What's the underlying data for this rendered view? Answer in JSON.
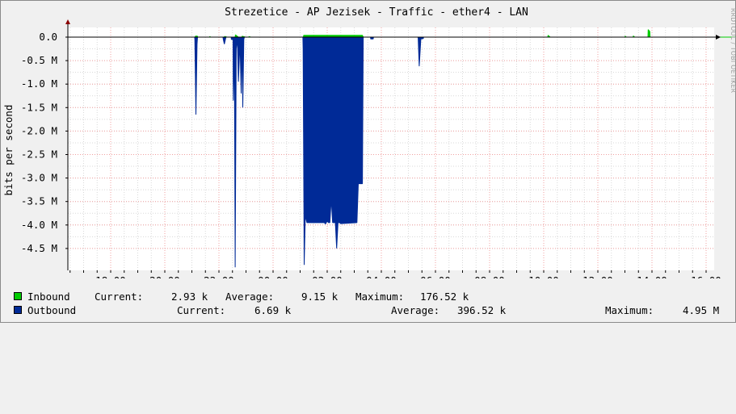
{
  "chart_data": {
    "type": "area",
    "title": "Strezetice - AP Jezisek - Traffic - ether4 - LAN",
    "ylabel": "bits per second",
    "xlabel": "",
    "ylim": [
      -4.85,
      0.2
    ],
    "y_unit": "M",
    "y_tick_labels": [
      "0.0",
      "-0.5 M",
      "-1.0 M",
      "-1.5 M",
      "-2.0 M",
      "-2.5 M",
      "-3.0 M",
      "-3.5 M",
      "-4.0 M",
      "-4.5 M"
    ],
    "x_tick_labels": [
      "18:00",
      "20:00",
      "22:00",
      "00:00",
      "02:00",
      "04:00",
      "06:00",
      "08:00",
      "10:00",
      "12:00",
      "14:00",
      "16:00"
    ],
    "x_unit": "hours since 18:00 (approx)",
    "grid": true,
    "series": [
      {
        "name": "Inbound",
        "color": "#00cc00",
        "points": [
          [
            3.12,
            0
          ],
          [
            3.13,
            0.02
          ],
          [
            3.2,
            0.02
          ],
          [
            3.22,
            0
          ],
          [
            3.65,
            0
          ],
          [
            3.66,
            0.012
          ],
          [
            3.7,
            0
          ],
          [
            4.2,
            0
          ],
          [
            4.21,
            0.015
          ],
          [
            4.3,
            0
          ],
          [
            4.6,
            0
          ],
          [
            4.61,
            0.05
          ],
          [
            4.72,
            0
          ],
          [
            4.85,
            0
          ],
          [
            4.86,
            0.02
          ],
          [
            4.98,
            0
          ],
          [
            5.1,
            0
          ],
          [
            5.11,
            0.01
          ],
          [
            5.18,
            0
          ],
          [
            7.12,
            0
          ],
          [
            7.13,
            0.04
          ],
          [
            9.3,
            0.04
          ],
          [
            9.33,
            0
          ],
          [
            16.15,
            0
          ],
          [
            16.16,
            0.04
          ],
          [
            16.24,
            0
          ],
          [
            19.0,
            0
          ],
          [
            19.01,
            0.02
          ],
          [
            19.05,
            0
          ],
          [
            19.3,
            0
          ],
          [
            19.31,
            0.025
          ],
          [
            19.36,
            0
          ],
          [
            19.85,
            0
          ],
          [
            19.86,
            0.16
          ],
          [
            19.92,
            0.12
          ],
          [
            19.93,
            0
          ],
          [
            24.1,
            0
          ],
          [
            24.11,
            0.008
          ],
          [
            24.15,
            0
          ]
        ]
      },
      {
        "name": "Outbound",
        "color": "#002a97",
        "points": [
          [
            3.1,
            0
          ],
          [
            3.11,
            -0.05
          ],
          [
            3.15,
            -1.65
          ],
          [
            3.19,
            -0.15
          ],
          [
            3.21,
            0
          ],
          [
            4.15,
            0
          ],
          [
            4.16,
            -0.05
          ],
          [
            4.2,
            -0.15
          ],
          [
            4.24,
            -0.05
          ],
          [
            4.26,
            0
          ],
          [
            4.45,
            0
          ],
          [
            4.46,
            -0.05
          ],
          [
            4.52,
            -0.05
          ],
          [
            4.53,
            -1.35
          ],
          [
            4.57,
            -0.2
          ],
          [
            4.6,
            -4.9
          ],
          [
            4.64,
            -0.25
          ],
          [
            4.68,
            -0.05
          ],
          [
            4.72,
            -0.95
          ],
          [
            4.78,
            -0.1
          ],
          [
            4.82,
            -1.2
          ],
          [
            4.85,
            -0.05
          ],
          [
            4.88,
            -1.5
          ],
          [
            4.92,
            -0.05
          ],
          [
            4.94,
            0
          ],
          [
            7.1,
            0
          ],
          [
            7.11,
            -0.25
          ],
          [
            7.15,
            -4.85
          ],
          [
            7.19,
            -3.8
          ],
          [
            7.25,
            -3.95
          ],
          [
            7.9,
            -3.95
          ],
          [
            7.93,
            -3.98
          ],
          [
            8.0,
            -3.92
          ],
          [
            8.05,
            -3.95
          ],
          [
            8.1,
            -3.95
          ],
          [
            8.15,
            -3.45
          ],
          [
            8.2,
            -3.95
          ],
          [
            8.3,
            -3.95
          ],
          [
            8.35,
            -4.5
          ],
          [
            8.4,
            -3.95
          ],
          [
            8.45,
            -3.95
          ],
          [
            8.5,
            -3.97
          ],
          [
            9.1,
            -3.95
          ],
          [
            9.15,
            -3.12
          ],
          [
            9.3,
            -3.12
          ],
          [
            9.33,
            0
          ],
          [
            9.6,
            0
          ],
          [
            9.61,
            -0.04
          ],
          [
            9.7,
            -0.04
          ],
          [
            9.71,
            0
          ],
          [
            11.35,
            0
          ],
          [
            11.36,
            -0.02
          ],
          [
            11.4,
            -0.62
          ],
          [
            11.46,
            -0.04
          ],
          [
            11.55,
            -0.03
          ],
          [
            11.56,
            0
          ]
        ]
      }
    ]
  },
  "legend": [
    {
      "label": "Inbound",
      "current_label": "Current:",
      "current": "2.93 k",
      "average_label": "Average:",
      "average": "9.15 k",
      "maximum_label": "Maximum:",
      "maximum": "176.52 k",
      "color": "#00cc00"
    },
    {
      "label": "Outbound",
      "current_label": "Current:",
      "current": "6.69 k",
      "average_label": "Average:",
      "average": "396.52 k",
      "maximum_label": "Maximum:",
      "maximum": "4.95 M",
      "color": "#002a97"
    }
  ],
  "watermark": "RRDTOOL / TOBI OETIKER"
}
